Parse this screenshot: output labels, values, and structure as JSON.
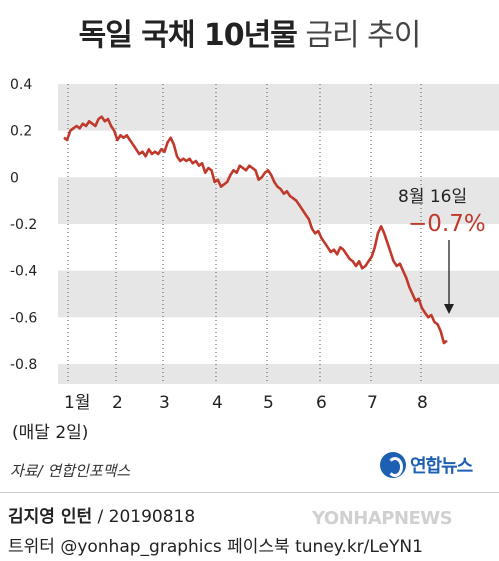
{
  "header": {
    "title_bold": "독일 국채 10년물",
    "title_light": "금리 추이"
  },
  "chart_data": {
    "type": "line",
    "xlabel": "",
    "ylabel": "",
    "ylim": [
      -0.8,
      0.4
    ],
    "yticks": [
      "0.4",
      "0.2",
      "0",
      "-0.2",
      "-0.4",
      "-0.6",
      "-0.8"
    ],
    "ytick_values": [
      0.4,
      0.2,
      0,
      -0.2,
      -0.4,
      -0.6,
      -0.8
    ],
    "xticks": [
      "1월",
      "2",
      "3",
      "4",
      "5",
      "6",
      "7",
      "8"
    ],
    "xtick_sub": "(매달 2일)",
    "grid": "horizontal bands",
    "line_color": "#c0392b",
    "series": [
      {
        "values": [
          0.17,
          0.16,
          0.2,
          0.21,
          0.22,
          0.21,
          0.23,
          0.22,
          0.24,
          0.23,
          0.22,
          0.25,
          0.26,
          0.24,
          0.25,
          0.22,
          0.2,
          0.16,
          0.18,
          0.17,
          0.18,
          0.16,
          0.14,
          0.12,
          0.1,
          0.11,
          0.09,
          0.12,
          0.1,
          0.11,
          0.1,
          0.12,
          0.11,
          0.15,
          0.17,
          0.14,
          0.09,
          0.07,
          0.08,
          0.07,
          0.08,
          0.06,
          0.07,
          0.05,
          0.06,
          0.02,
          0.04,
          0.03,
          -0.02,
          -0.01,
          -0.04,
          -0.03,
          -0.02,
          0.01,
          0.03,
          0.02,
          0.05,
          0.04,
          0.03,
          0.05,
          0.04,
          0.03,
          -0.01,
          0.0,
          0.02,
          0.03,
          0.01,
          -0.02,
          -0.04,
          -0.05,
          -0.07,
          -0.06,
          -0.08,
          -0.09,
          -0.1,
          -0.12,
          -0.14,
          -0.16,
          -0.18,
          -0.22,
          -0.24,
          -0.23,
          -0.26,
          -0.28,
          -0.3,
          -0.32,
          -0.31,
          -0.33,
          -0.3,
          -0.31,
          -0.33,
          -0.35,
          -0.36,
          -0.38,
          -0.36,
          -0.39,
          -0.38,
          -0.36,
          -0.34,
          -0.3,
          -0.24,
          -0.21,
          -0.24,
          -0.28,
          -0.32,
          -0.36,
          -0.38,
          -0.37,
          -0.4,
          -0.43,
          -0.47,
          -0.5,
          -0.53,
          -0.52,
          -0.56,
          -0.58,
          -0.6,
          -0.59,
          -0.62,
          -0.63,
          -0.66,
          -0.71,
          -0.7
        ]
      }
    ],
    "annotation": {
      "date": "8월 16일",
      "value": "−0.7%"
    }
  },
  "source": "자료/ 연합인포맥스",
  "logo": {
    "text": "연합뉴스",
    "icon": "yonhap-logo-icon"
  },
  "credit": {
    "name": "김지영 인턴",
    "rest": " / 20190818"
  },
  "footer": "트위터 @yonhap_graphics  페이스북 tuney.kr/LeYN1",
  "watermark": "YONHAPNEWS"
}
